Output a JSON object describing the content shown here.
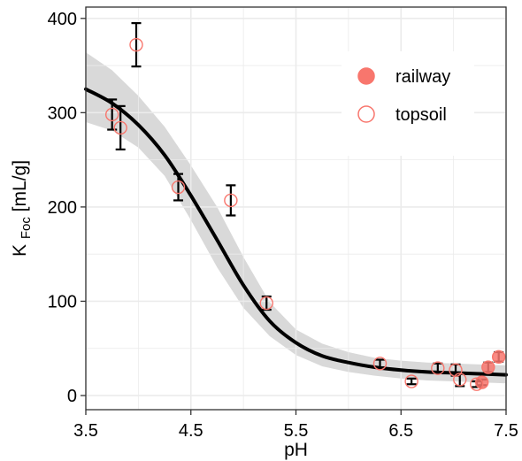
{
  "chart_data": {
    "type": "scatter",
    "xlabel": "pH",
    "ylabel": {
      "main": "K",
      "sub": "Foc",
      "rest": " [mL/g]"
    },
    "xlim": [
      3.5,
      7.5
    ],
    "ylim": [
      -15,
      412
    ],
    "xticks": [
      3.5,
      4.5,
      5.5,
      6.5,
      7.5
    ],
    "xtick_labels": [
      "3.5",
      "4.5",
      "5.5",
      "6.5",
      "7.5"
    ],
    "yticks": [
      0,
      100,
      200,
      300,
      400
    ],
    "ytick_labels": [
      "0",
      "100",
      "200",
      "300",
      "400"
    ],
    "grid": true,
    "legend": {
      "position": "top-right",
      "entries": [
        {
          "label": "railway",
          "marker": "filled-circle"
        },
        {
          "label": "topsoil",
          "marker": "open-circle"
        }
      ]
    },
    "colors": {
      "points": "#F8766D",
      "curve": "#000000",
      "ribbon": "#D9D9D9",
      "grid": "#EBEBEB"
    },
    "series": [
      {
        "name": "railway",
        "marker": "filled",
        "points": [
          {
            "x": 7.27,
            "y": 14,
            "err": 3
          },
          {
            "x": 7.33,
            "y": 30,
            "err": 5
          },
          {
            "x": 7.43,
            "y": 41,
            "err": 5
          }
        ]
      },
      {
        "name": "topsoil",
        "marker": "open",
        "points": [
          {
            "x": 3.75,
            "y": 298,
            "err": 16
          },
          {
            "x": 3.83,
            "y": 284,
            "err": 23
          },
          {
            "x": 3.98,
            "y": 372,
            "err": 23
          },
          {
            "x": 4.38,
            "y": 221,
            "err": 14
          },
          {
            "x": 4.88,
            "y": 207,
            "err": 16
          },
          {
            "x": 5.22,
            "y": 98,
            "err": 7
          },
          {
            "x": 6.3,
            "y": 34,
            "err": 4
          },
          {
            "x": 6.6,
            "y": 15,
            "err": 3
          },
          {
            "x": 6.85,
            "y": 29,
            "err": 5
          },
          {
            "x": 7.02,
            "y": 27,
            "err": 6
          },
          {
            "x": 7.06,
            "y": 17,
            "err": 7
          },
          {
            "x": 7.22,
            "y": 12,
            "err": 3
          }
        ]
      }
    ],
    "fit_curve": {
      "x": [
        3.5,
        3.75,
        4.0,
        4.25,
        4.5,
        4.75,
        5.0,
        5.25,
        5.5,
        5.75,
        6.0,
        6.25,
        6.5,
        6.75,
        7.0,
        7.25,
        7.5
      ],
      "y": [
        325,
        310,
        287,
        255,
        212,
        165,
        117,
        79,
        56,
        42,
        35,
        30,
        27,
        25,
        24,
        23,
        22
      ],
      "lower": [
        290,
        281,
        263,
        233,
        186,
        136,
        93,
        63,
        43,
        31,
        25,
        21,
        18,
        16,
        15,
        14,
        13
      ],
      "upper": [
        364,
        345,
        318,
        285,
        244,
        200,
        147,
        99,
        70,
        55,
        46,
        40,
        37,
        35,
        34,
        33,
        32
      ]
    }
  }
}
